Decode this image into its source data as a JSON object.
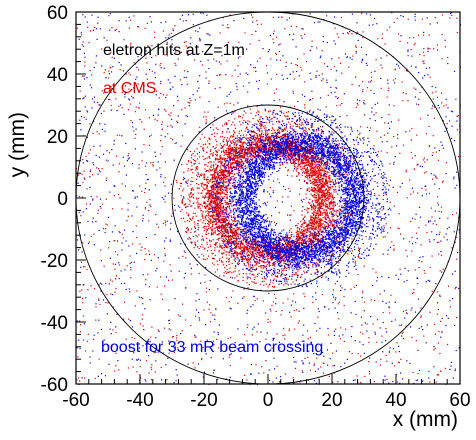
{
  "chart_data": {
    "type": "scatter",
    "title": "",
    "xlabel": "x (mm)",
    "ylabel": "y (mm)",
    "xlim": [
      -60,
      60
    ],
    "ylim": [
      -60,
      60
    ],
    "x_ticks": [
      "-60",
      "-40",
      "-20",
      "0",
      "20",
      "40",
      "60"
    ],
    "y_ticks": [
      "-60",
      "-40",
      "-20",
      "0",
      "20",
      "40",
      "60"
    ],
    "grid": false,
    "annotations": [
      {
        "text": "eletron hits at Z=1m",
        "color": "#000000"
      },
      {
        "text": "at CMS",
        "color": "#e00000"
      },
      {
        "text": "boost for 33 mR beam crossing",
        "color": "#0000e0"
      }
    ],
    "circles": [
      {
        "center": [
          0,
          0
        ],
        "radius": 30
      },
      {
        "center": [
          0,
          0
        ],
        "radius": 60
      }
    ],
    "series": [
      {
        "color": "#e00000",
        "ring_center": [
          0,
          0
        ],
        "inner_radius": 10,
        "outer_radius": 20
      },
      {
        "color": "#0000e0",
        "ring_center": [
          10,
          0
        ],
        "inner_radius": 10,
        "outer_radius": 20
      }
    ]
  }
}
